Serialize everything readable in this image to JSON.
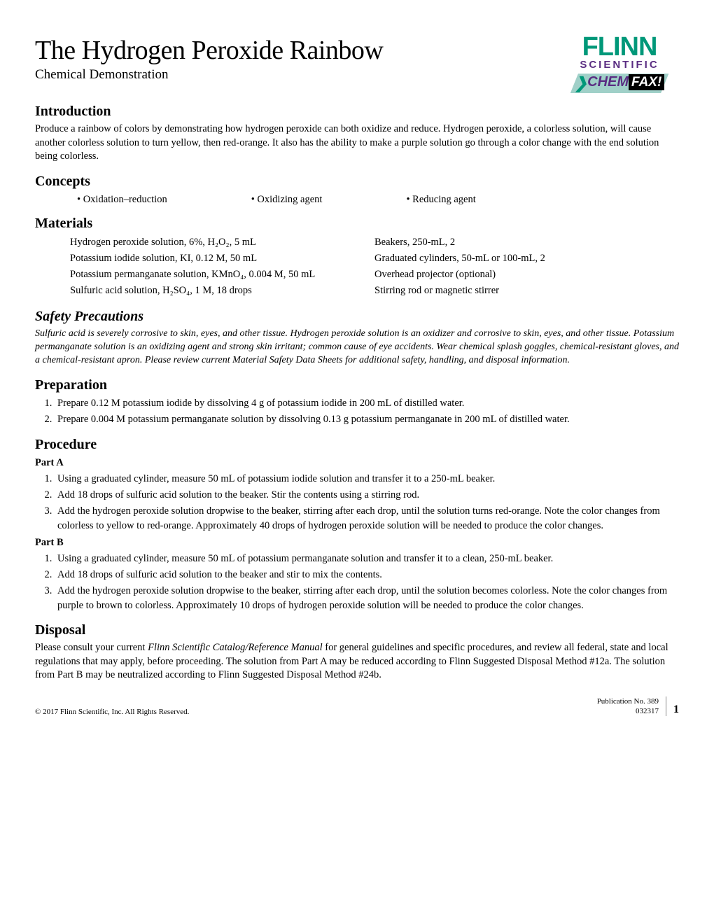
{
  "title": "The Hydrogen Peroxide Rainbow",
  "subtitle": "Chemical Demonstration",
  "logo": {
    "brand": "FLINN",
    "sub": "SCIENTIFIC",
    "chem": "CHEM",
    "fax": "FAX!",
    "brand_color": "#009879",
    "sub_color": "#5a2d82"
  },
  "sections": {
    "intro_h": "Introduction",
    "intro_p": "Produce a rainbow of colors by demonstrating how hydrogen peroxide can both oxidize and reduce. Hydrogen peroxide, a colorless solution, will cause another colorless solution to turn yellow, then red-orange. It also has the ability to make a purple solution go through a color change with the end solution being colorless.",
    "concepts_h": "Concepts",
    "concepts": [
      "Oxidation–reduction",
      "Oxidizing agent",
      "Reducing agent"
    ],
    "materials_h": "Materials",
    "materials_left": [
      "Hydrogen peroxide solution, 6%, H₂O₂, 5 mL",
      "Potassium iodide solution, KI, 0.12 M, 50 mL",
      "Potassium permanganate solution, KMnO₄, 0.004 M, 50 mL",
      "Sulfuric acid solution, H₂SO₄, 1 M, 18 drops"
    ],
    "materials_right": [
      "Beakers, 250-mL, 2",
      "Graduated cylinders, 50-mL or 100-mL, 2",
      "Overhead projector (optional)",
      "Stirring rod or magnetic stirrer"
    ],
    "safety_h": "Safety Precautions",
    "safety_p": "Sulfuric acid is severely corrosive to skin, eyes, and other tissue. Hydrogen peroxide solution is an oxidizer and corrosive to skin, eyes, and other tissue. Potassium permanganate solution is an oxidizing agent and strong skin irritant; common cause of eye accidents. Wear chemical splash goggles, chemical-resistant gloves, and a chemical-resistant apron. Please review current Material Safety Data Sheets for additional safety, handling, and disposal information.",
    "prep_h": "Preparation",
    "prep": [
      "Prepare 0.12 M potassium iodide by dissolving 4 g of potassium iodide in 200 mL of distilled water.",
      "Prepare 0.004 M potassium permanganate solution by dissolving 0.13 g potassium permanganate in 200 mL of distilled water."
    ],
    "proc_h": "Procedure",
    "partA_label": "Part A",
    "partA": [
      "Using a graduated cylinder, measure 50 mL of potassium iodide solution and transfer it to a 250-mL beaker.",
      "Add 18 drops of sulfuric acid solution to the beaker. Stir the contents using a stirring rod.",
      "Add the hydrogen peroxide solution dropwise to the beaker, stirring after each drop, until the solution turns red-orange. Note the color changes from colorless to yellow to red-orange. Approximately 40 drops of hydrogen peroxide solution will be needed to produce the color changes."
    ],
    "partB_label": "Part B",
    "partB": [
      "Using a graduated cylinder, measure 50 mL of potassium permanganate solution and transfer it to a clean, 250-mL beaker.",
      "Add 18 drops of sulfuric acid solution to the beaker and stir to mix the contents.",
      "Add the hydrogen peroxide solution dropwise to the beaker, stirring after each drop, until the solution becomes colorless. Note the color changes from purple to brown to colorless. Approximately 10 drops of hydrogen peroxide solution will be needed to produce the color changes."
    ],
    "disposal_h": "Disposal",
    "disposal_pre": "Please consult your current ",
    "disposal_em": "Flinn Scientific Catalog/Reference Manual",
    "disposal_post": " for general guidelines and specific procedures, and review all federal, state and local regulations that may apply, before proceeding. The solution from Part A may be reduced according to Flinn Suggested Disposal Method #12a. The solution from Part B may be neutralized according to Flinn Suggested Disposal Method #24b."
  },
  "footer": {
    "copyright": "© 2017 Flinn Scientific, Inc. All Rights Reserved.",
    "pubno": "Publication No. 389",
    "date": "032317",
    "page": "1"
  }
}
